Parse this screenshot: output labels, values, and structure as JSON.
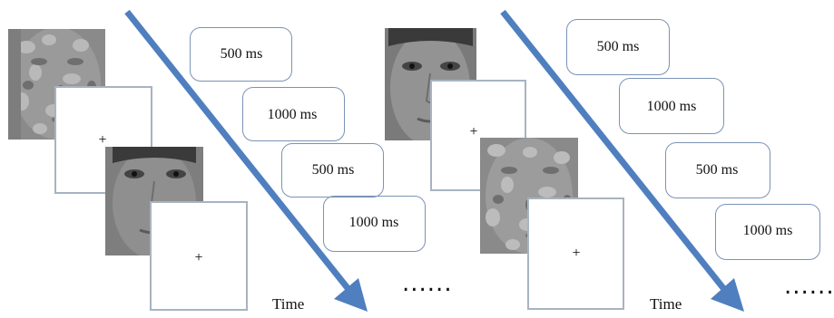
{
  "panels": [
    {
      "durations": [
        "500 ms",
        "1000 ms",
        "500 ms",
        "1000 ms"
      ],
      "fixation_symbol": "+",
      "time_label": "Time",
      "continuation": "......"
    },
    {
      "durations": [
        "500 ms",
        "1000 ms",
        "500 ms",
        "1000 ms"
      ],
      "fixation_symbol": "+",
      "time_label": "Time",
      "continuation": "......"
    }
  ],
  "colors": {
    "arrow": "#4f7fbf",
    "frame_border": "#a7b3c1",
    "bracket": "#7a93b4",
    "face_gray": "#8a8a8a"
  },
  "icons": {
    "face": "face-photo-icon",
    "scrambled_face": "scrambled-face-icon",
    "fixation": "fixation-cross"
  }
}
